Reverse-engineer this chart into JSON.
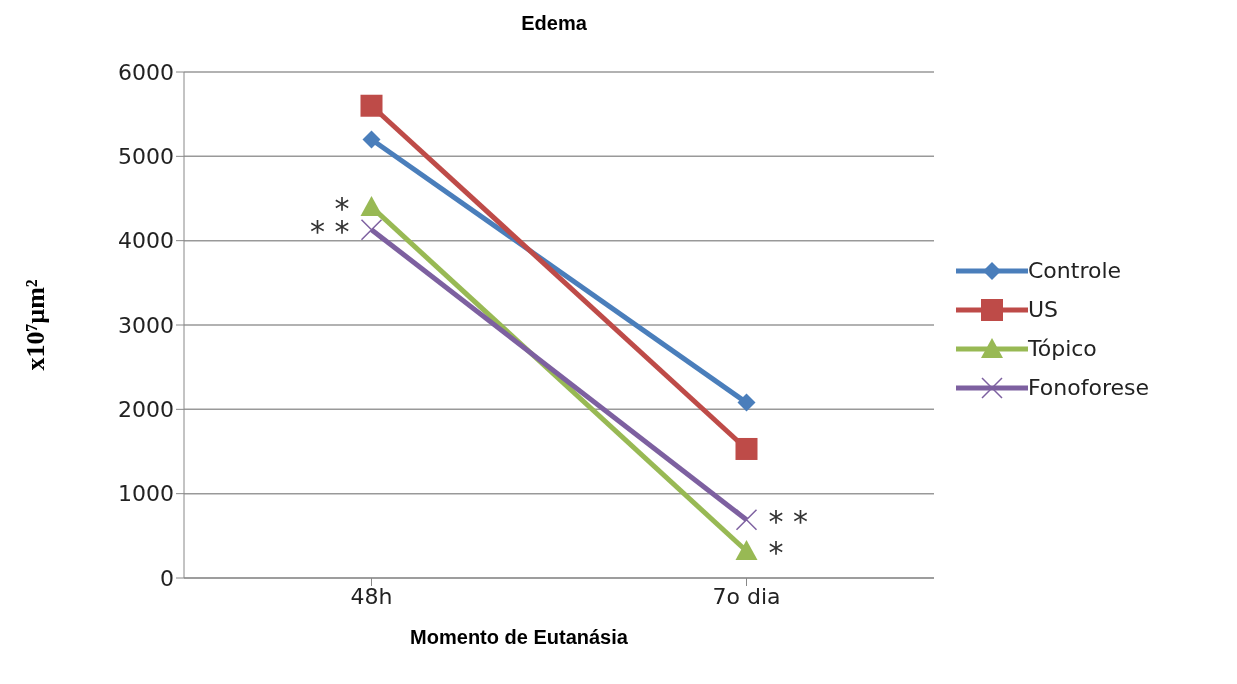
{
  "chart_data": {
    "type": "line",
    "title": "Edema",
    "xlabel": "Momento de Eutanásia",
    "ylabel": "x10⁷µm²",
    "categories": [
      "48h",
      "7o dia"
    ],
    "series": [
      {
        "name": "Controle",
        "color": "#4a7ebb",
        "marker": "diamond",
        "values": [
          5200,
          2080
        ]
      },
      {
        "name": "US",
        "color": "#be4b48",
        "marker": "square",
        "values": [
          5600,
          1530
        ]
      },
      {
        "name": "Tópico",
        "color": "#98b954",
        "marker": "triangle",
        "values": [
          4400,
          320
        ]
      },
      {
        "name": "Fonoforese",
        "color": "#7d60a0",
        "marker": "cross",
        "values": [
          4130,
          690
        ]
      }
    ],
    "ylim": [
      0,
      6000
    ],
    "yticks": [
      0,
      1000,
      2000,
      3000,
      4000,
      5000,
      6000
    ],
    "grid": "y",
    "legend": "right",
    "annotations": [
      {
        "text": "*",
        "x": "48h",
        "y": 4400
      },
      {
        "text": "* *",
        "x": "48h",
        "y": 4130
      },
      {
        "text": "* *",
        "x": "7o dia",
        "y": 690
      },
      {
        "text": "*",
        "x": "7o dia",
        "y": 320
      }
    ]
  }
}
